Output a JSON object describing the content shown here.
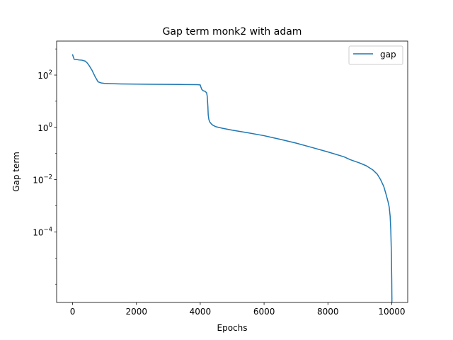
{
  "chart_data": {
    "type": "line",
    "title": "Gap term monk2 with adam",
    "xlabel": "Epochs",
    "ylabel": "Gap term",
    "xlim": [
      -500,
      10500
    ],
    "ylim": [
      2e-07,
      2000
    ],
    "yscale": "log",
    "grid": false,
    "legend_position": "top-right",
    "x_ticks": [
      0,
      2000,
      4000,
      6000,
      8000,
      10000
    ],
    "x_tick_labels": [
      "0",
      "2000",
      "4000",
      "6000",
      "8000",
      "10000"
    ],
    "y_ticks": [
      100,
      1,
      0.01,
      0.0001
    ],
    "y_tick_labels": [
      {
        "base": "10",
        "exp": "2"
      },
      {
        "base": "10",
        "exp": "0"
      },
      {
        "base": "10",
        "exp": "−2"
      },
      {
        "base": "10",
        "exp": "−4"
      }
    ],
    "series": [
      {
        "name": "gap",
        "color": "#1f77b4",
        "x": [
          0,
          50,
          100,
          200,
          300,
          400,
          450,
          500,
          550,
          600,
          650,
          700,
          750,
          800,
          900,
          1000,
          1200,
          1500,
          2000,
          2500,
          3000,
          3500,
          3900,
          4000,
          4020,
          4050,
          4080,
          4100,
          4150,
          4200,
          4220,
          4240,
          4250,
          4270,
          4300,
          4350,
          4400,
          4500,
          4700,
          5000,
          5500,
          6000,
          6500,
          7000,
          7500,
          8000,
          8500,
          8700,
          9000,
          9200,
          9400,
          9550,
          9650,
          9750,
          9820,
          9880,
          9920,
          9950,
          9970,
          9980,
          9990,
          9995,
          10000,
          10003,
          10005
        ],
        "y": [
          600,
          400,
          400,
          380,
          370,
          340,
          300,
          250,
          200,
          160,
          120,
          90,
          70,
          55,
          50,
          48,
          47,
          46,
          45,
          44.5,
          44,
          43.5,
          43,
          42,
          35,
          28,
          26,
          25,
          24,
          21,
          15,
          6,
          3,
          2,
          1.6,
          1.35,
          1.2,
          1.05,
          0.92,
          0.78,
          0.62,
          0.48,
          0.35,
          0.25,
          0.17,
          0.115,
          0.075,
          0.058,
          0.043,
          0.034,
          0.024,
          0.016,
          0.01,
          0.0055,
          0.0028,
          0.0015,
          0.0009,
          0.0004,
          0.00012,
          4e-05,
          1.2e-05,
          4e-06,
          1.5e-06,
          5e-07,
          3e-07
        ]
      }
    ]
  }
}
